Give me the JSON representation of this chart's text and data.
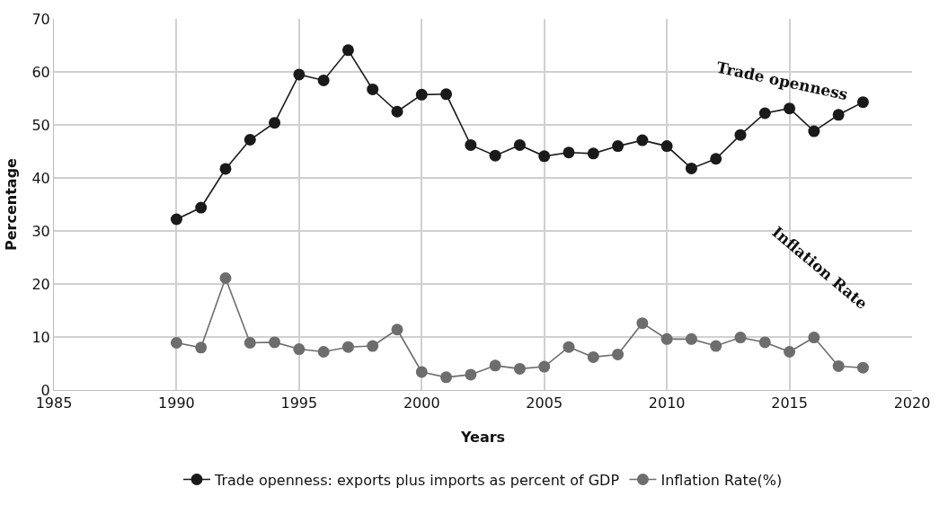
{
  "chart_data": {
    "type": "line",
    "xlabel": "Years",
    "ylabel": "Percentage",
    "x": [
      1990,
      1991,
      1992,
      1993,
      1994,
      1995,
      1996,
      1997,
      1998,
      1999,
      2000,
      2001,
      2002,
      2003,
      2004,
      2005,
      2006,
      2007,
      2008,
      2009,
      2010,
      2011,
      2012,
      2013,
      2014,
      2015,
      2016,
      2017,
      2018
    ],
    "series": [
      {
        "name": "Trade openness: exports plus imports as percent of GDP",
        "color": "#1a1a1a",
        "values": [
          32.2,
          34.4,
          41.7,
          47.2,
          50.4,
          59.5,
          58.4,
          64.1,
          56.7,
          52.5,
          55.7,
          55.8,
          46.2,
          44.2,
          46.2,
          44.1,
          44.8,
          44.6,
          46.0,
          47.1,
          46.0,
          41.8,
          43.6,
          48.1,
          52.2,
          53.1,
          48.8,
          51.9,
          54.3
        ]
      },
      {
        "name": "Inflation Rate(%)",
        "color": "#6d6d6d",
        "values": [
          8.9,
          8.0,
          21.1,
          8.9,
          9.0,
          7.7,
          7.2,
          8.1,
          8.3,
          11.4,
          3.4,
          2.4,
          2.9,
          4.6,
          4.0,
          4.4,
          8.1,
          6.2,
          6.7,
          12.6,
          9.6,
          9.6,
          8.3,
          9.9,
          9.0,
          7.2,
          9.9,
          4.5,
          4.2
        ]
      }
    ],
    "annotations": [
      "Trade openness",
      "Inflation Rate"
    ],
    "xlim": [
      1985,
      2020
    ],
    "xticks": [
      1985,
      1990,
      1995,
      2000,
      2005,
      2010,
      2015,
      2020
    ],
    "ylim": [
      0,
      70
    ],
    "yticks": [
      0,
      10,
      20,
      30,
      40,
      50,
      60,
      70
    ],
    "grid": true,
    "legend": "bottom",
    "marker": "circle",
    "line_style": "solid"
  }
}
